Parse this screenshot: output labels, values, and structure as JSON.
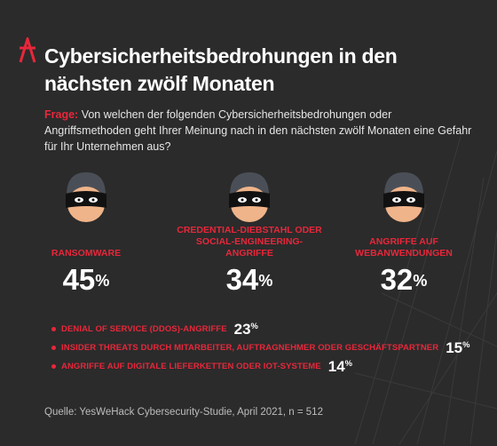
{
  "title": "Cybersicherheitsbedrohungen in den nächsten zwölf Monaten",
  "question": {
    "label": "Frage:",
    "text": "Von welchen der folgenden Cybersicherheitsbedrohungen oder Angriffsmethoden geht Ihrer Meinung nach in den nächsten zwölf Monaten eine Gefahr für Ihr Unternehmen aus?"
  },
  "icons": {
    "mask": "masked-hacker-icon",
    "logo": "logo-mark-icon"
  },
  "colors": {
    "background": "#2b2b2b",
    "accent": "#e8273a",
    "text": "#ffffff"
  },
  "chart_data": {
    "type": "table",
    "unit": "%",
    "highlights": [
      {
        "label": "RANSOMWARE",
        "value": 45
      },
      {
        "label": "CREDENTIAL-DIEBSTAHL ODER SOCIAL-ENGINEERING-ANGRIFFE",
        "value": 34
      },
      {
        "label": "ANGRIFFE AUF WEBANWENDUNGEN",
        "value": 32
      }
    ],
    "others": [
      {
        "label": "DENIAL OF SERVICE (DDOS)-ANGRIFFE",
        "value": 23
      },
      {
        "label": "INSIDER THREATS DURCH MITARBEITER, AUFTRAGNEHMER ODER GESCHÄFTSPARTNER",
        "value": 15
      },
      {
        "label": "ANGRIFFE AUF DIGITALE LIEFERKETTEN ODER IOT-SYSTEME",
        "value": 14
      }
    ]
  },
  "source": "Quelle: YesWeHack Cybersecurity-Studie, April 2021, n = 512"
}
